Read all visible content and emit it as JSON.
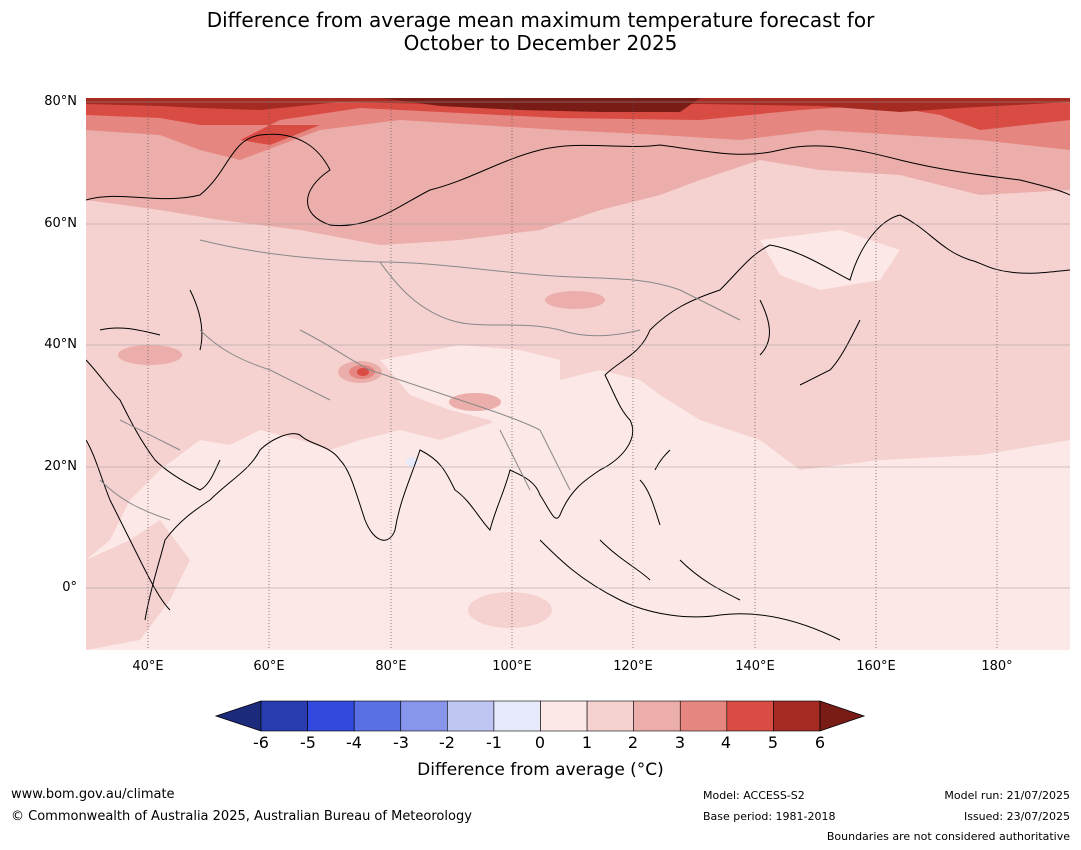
{
  "title_line1": "Difference from average mean maximum temperature forecast for",
  "title_line2": "October to December 2025",
  "map": {
    "lat_labels": [
      "80°N",
      "60°N",
      "40°N",
      "20°N",
      "0°"
    ],
    "lon_labels": [
      "40°E",
      "60°E",
      "80°E",
      "100°E",
      "120°E",
      "140°E",
      "160°E",
      "180°"
    ],
    "ocean_color": "#fce9e7"
  },
  "colorbar": {
    "ticks": [
      "-6",
      "-5",
      "-4",
      "-3",
      "-2",
      "-1",
      "0",
      "1",
      "2",
      "3",
      "4",
      "5",
      "6"
    ],
    "colors": [
      "#283cae",
      "#3149df",
      "#5a6fe4",
      "#8795ea",
      "#bfc6f4",
      "#e7eafa",
      "#fce9e7",
      "#f5d1cf",
      "#ecaeaa",
      "#e68680",
      "#d94c43",
      "#a52a22"
    ],
    "under_color": "#1b2a7a",
    "over_color": "#7a1c16",
    "label": "Difference from average (°C)"
  },
  "footer": {
    "website": "www.bom.gov.au/climate",
    "copyright": "© Commonwealth of Australia 2025, Australian Bureau of Meteorology",
    "model": "Model: ACCESS-S2",
    "base_period": "Base period: 1981-2018",
    "model_run": "Model run: 21/07/2025",
    "issued": "Issued: 23/07/2025",
    "boundaries_note": "Boundaries are not considered authoritative"
  }
}
